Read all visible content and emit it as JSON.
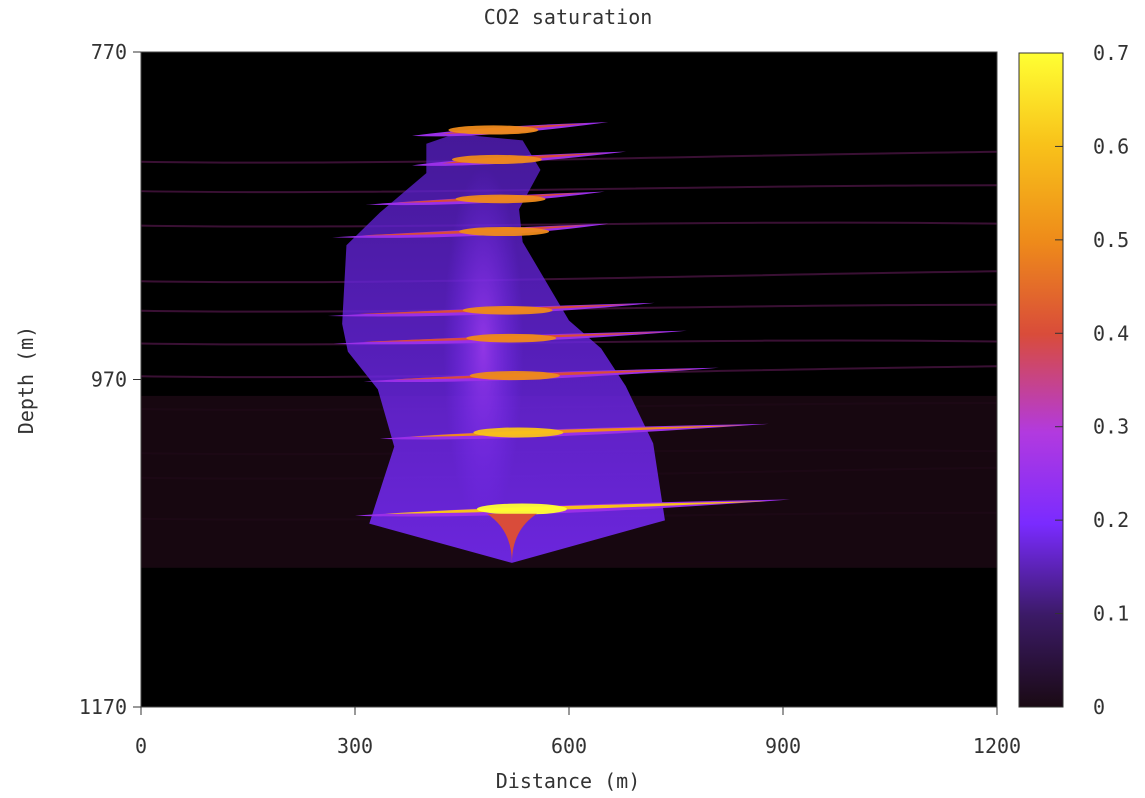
{
  "chart_data": {
    "type": "heatmap",
    "title": "CO2 saturation",
    "xlabel": "Distance (m)",
    "ylabel": "Depth (m)",
    "xlim": [
      0,
      1200
    ],
    "ylim": [
      770,
      1170
    ],
    "y_inverted": true,
    "x_ticks": [
      "0",
      "300",
      "600",
      "900",
      "1200"
    ],
    "y_ticks": [
      "770",
      "970",
      "1170"
    ],
    "colorbar": {
      "range": [
        0,
        0.7
      ],
      "ticks": [
        "0",
        "0.1",
        "0.2",
        "0.3",
        "0.4",
        "0.5",
        "0.6",
        "0.7"
      ],
      "colormap": [
        "#1a0a14",
        "#3b1a66",
        "#7a2bff",
        "#b23adf",
        "#d94c3a",
        "#ee8a1a",
        "#f8c21a",
        "#ffff33"
      ]
    },
    "injection_point": {
      "x": 520,
      "depth": 1082
    },
    "plume_layers": [
      {
        "depth": 820,
        "x_min": 380,
        "x_max": 655,
        "s_max": 0.5
      },
      {
        "depth": 838,
        "x_min": 380,
        "x_max": 680,
        "s_max": 0.5
      },
      {
        "depth": 862,
        "x_min": 315,
        "x_max": 650,
        "s_max": 0.45
      },
      {
        "depth": 882,
        "x_min": 268,
        "x_max": 655,
        "s_max": 0.5
      },
      {
        "depth": 930,
        "x_min": 262,
        "x_max": 720,
        "s_max": 0.45
      },
      {
        "depth": 947,
        "x_min": 270,
        "x_max": 765,
        "s_max": 0.45
      },
      {
        "depth": 970,
        "x_min": 312,
        "x_max": 810,
        "s_max": 0.5
      },
      {
        "depth": 1005,
        "x_min": 335,
        "x_max": 880,
        "s_max": 0.6
      },
      {
        "depth": 1052,
        "x_min": 300,
        "x_max": 910,
        "s_max": 0.7
      }
    ]
  }
}
